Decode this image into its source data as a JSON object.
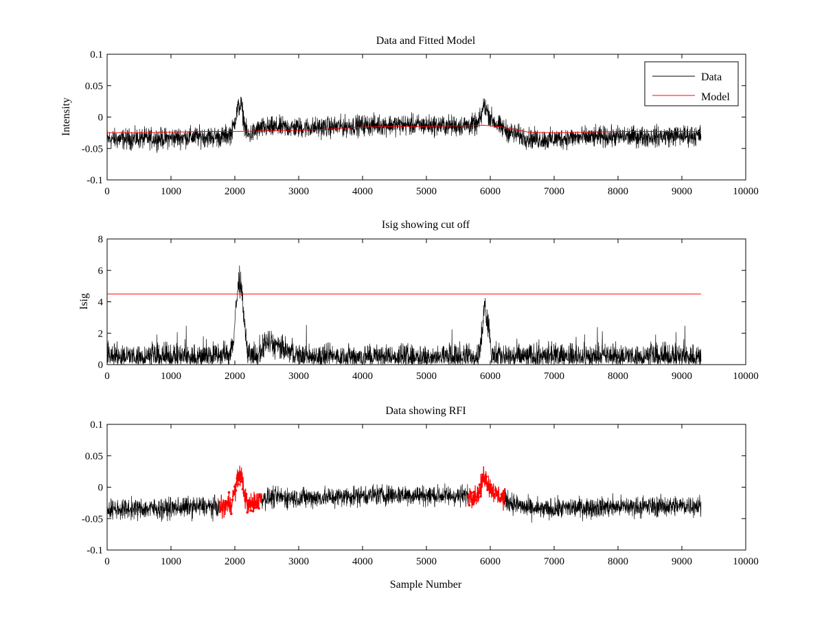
{
  "chart_data": [
    {
      "type": "line",
      "title": "Data and Fitted Model",
      "xlabel": "",
      "ylabel": "Intensity",
      "xlim": [
        0,
        10000
      ],
      "ylim": [
        -0.1,
        0.1
      ],
      "xticks": [
        0,
        1000,
        2000,
        3000,
        4000,
        5000,
        6000,
        7000,
        8000,
        9000,
        10000
      ],
      "yticks": [
        -0.1,
        -0.05,
        0,
        0.05,
        0.1
      ],
      "xtick_labels": [
        "0",
        "1000",
        "2000",
        "3000",
        "4000",
        "5000",
        "6000",
        "7000",
        "8000",
        "9000",
        "10000"
      ],
      "ytick_labels": [
        "-0.1",
        "-0.05",
        "0",
        "0.05",
        "0.1"
      ],
      "grid": false,
      "legend": {
        "placement": "top-right",
        "entries": [
          {
            "name": "Data",
            "color": "#000000"
          },
          {
            "name": "Model",
            "color": "#ff0000"
          }
        ]
      },
      "series": [
        {
          "name": "Data",
          "color": "#000000",
          "x": [
            0,
            300,
            600,
            900,
            1200,
            1500,
            1800,
            1950,
            2000,
            2050,
            2100,
            2150,
            2200,
            2400,
            2700,
            3000,
            3500,
            4000,
            4500,
            5000,
            5500,
            5800,
            5850,
            5900,
            5950,
            6000,
            6100,
            6300,
            6600,
            6900,
            7200,
            7600,
            8000,
            8400,
            8800,
            9300
          ],
          "y": [
            -0.035,
            -0.035,
            -0.034,
            -0.034,
            -0.032,
            -0.031,
            -0.032,
            -0.025,
            -0.005,
            0.015,
            0.02,
            -0.01,
            -0.03,
            -0.018,
            -0.016,
            -0.017,
            -0.016,
            -0.013,
            -0.012,
            -0.013,
            -0.014,
            -0.012,
            -0.002,
            0.02,
            0.01,
            0.0,
            -0.012,
            -0.024,
            -0.034,
            -0.036,
            -0.033,
            -0.032,
            -0.031,
            -0.031,
            -0.03,
            -0.029
          ],
          "noise_amplitude": 0.018
        },
        {
          "name": "Model",
          "color": "#ff0000",
          "x": [
            0,
            500,
            1000,
            1500,
            2000,
            2500,
            3000,
            3500,
            4000,
            4500,
            5000,
            5500,
            5900,
            6200,
            6600,
            7000,
            7500,
            8000,
            8500,
            9000,
            9300
          ],
          "y": [
            -0.025,
            -0.025,
            -0.024,
            -0.023,
            -0.023,
            -0.022,
            -0.021,
            -0.019,
            -0.016,
            -0.015,
            -0.015,
            -0.014,
            -0.013,
            -0.016,
            -0.024,
            -0.025,
            -0.024,
            -0.023,
            -0.023,
            -0.023,
            -0.023
          ]
        }
      ]
    },
    {
      "type": "line",
      "title": "Isig showing cut off",
      "xlabel": "",
      "ylabel": "Isig",
      "xlim": [
        0,
        10000
      ],
      "ylim": [
        0,
        8
      ],
      "xticks": [
        0,
        1000,
        2000,
        3000,
        4000,
        5000,
        6000,
        7000,
        8000,
        9000,
        10000
      ],
      "yticks": [
        0,
        2,
        4,
        6,
        8
      ],
      "xtick_labels": [
        "0",
        "1000",
        "2000",
        "3000",
        "4000",
        "5000",
        "6000",
        "7000",
        "8000",
        "9000",
        "10000"
      ],
      "ytick_labels": [
        "0",
        "2",
        "4",
        "6",
        "8"
      ],
      "grid": false,
      "series": [
        {
          "name": "",
          "color": "#000000",
          "x": [
            0,
            500,
            1000,
            1500,
            1900,
            1980,
            2020,
            2060,
            2100,
            2140,
            2200,
            2400,
            2470,
            3000,
            4000,
            5000,
            5800,
            5880,
            5910,
            5940,
            5980,
            6020,
            6100,
            7000,
            8000,
            9000,
            9300
          ],
          "y": [
            0.5,
            0.5,
            0.5,
            0.5,
            0.6,
            1.5,
            3.8,
            5.2,
            5.0,
            3.0,
            0.5,
            0.5,
            1.5,
            0.5,
            0.5,
            0.5,
            0.5,
            2.0,
            4.5,
            3.0,
            2.5,
            0.5,
            0.5,
            0.5,
            0.5,
            0.5,
            0.5
          ],
          "noise_amplitude": 1.0
        },
        {
          "name": "",
          "color": "#ff0000",
          "x": [
            0,
            9300
          ],
          "y": [
            4.5,
            4.5
          ]
        }
      ]
    },
    {
      "type": "line",
      "title": "Data showing RFI",
      "xlabel": "Sample Number",
      "ylabel": "",
      "xlim": [
        0,
        10000
      ],
      "ylim": [
        -0.1,
        0.1
      ],
      "xticks": [
        0,
        1000,
        2000,
        3000,
        4000,
        5000,
        6000,
        7000,
        8000,
        9000,
        10000
      ],
      "yticks": [
        -0.1,
        -0.05,
        0,
        0.05,
        0.1
      ],
      "xtick_labels": [
        "0",
        "1000",
        "2000",
        "3000",
        "4000",
        "5000",
        "6000",
        "7000",
        "8000",
        "9000",
        "10000"
      ],
      "ytick_labels": [
        "-0.1",
        "-0.05",
        "0",
        "0.05",
        "0.1"
      ],
      "grid": false,
      "series": [
        {
          "name": "",
          "color": "#000000",
          "x": [
            0,
            300,
            600,
            900,
            1200,
            1500,
            1800,
            1950,
            2000,
            2050,
            2100,
            2150,
            2200,
            2400,
            2700,
            3000,
            3500,
            4000,
            4500,
            5000,
            5500,
            5800,
            5850,
            5900,
            5950,
            6000,
            6100,
            6300,
            6600,
            6900,
            7200,
            7600,
            8000,
            8400,
            8800,
            9300
          ],
          "y": [
            -0.035,
            -0.035,
            -0.034,
            -0.034,
            -0.032,
            -0.031,
            -0.032,
            -0.025,
            -0.005,
            0.015,
            0.02,
            -0.01,
            -0.03,
            -0.018,
            -0.016,
            -0.017,
            -0.016,
            -0.013,
            -0.012,
            -0.013,
            -0.014,
            -0.012,
            -0.002,
            0.02,
            0.01,
            0.0,
            -0.012,
            -0.024,
            -0.034,
            -0.036,
            -0.033,
            -0.032,
            -0.031,
            -0.031,
            -0.03,
            -0.029
          ],
          "noise_amplitude": 0.018
        },
        {
          "name": "",
          "color": "#ff0000",
          "marker": "dot",
          "ranges": [
            [
              1750,
              2420
            ],
            [
              5650,
              6230
            ]
          ]
        }
      ]
    }
  ]
}
